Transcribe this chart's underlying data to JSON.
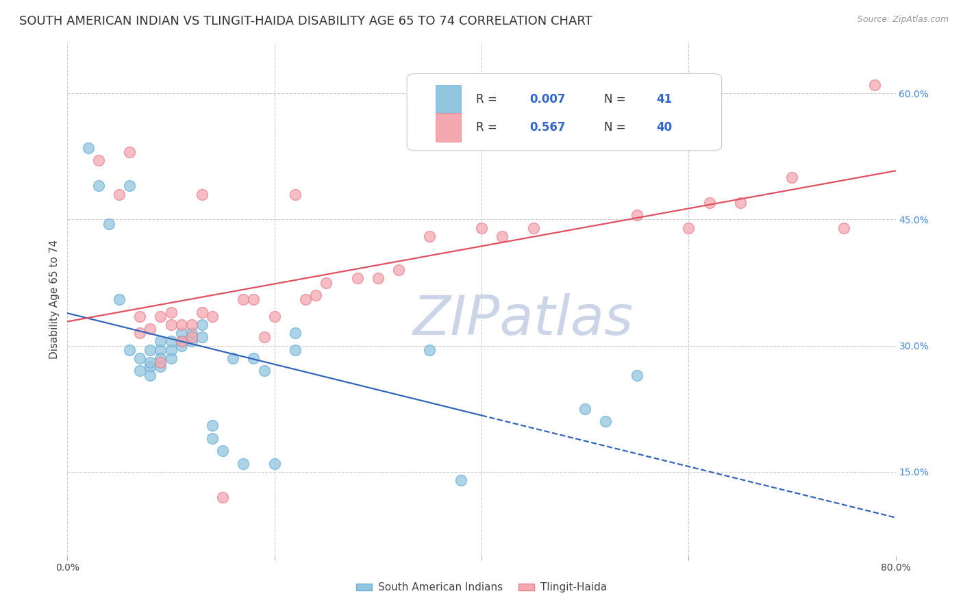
{
  "title": "SOUTH AMERICAN INDIAN VS TLINGIT-HAIDA DISABILITY AGE 65 TO 74 CORRELATION CHART",
  "source": "Source: ZipAtlas.com",
  "ylabel": "Disability Age 65 to 74",
  "x_min": 0.0,
  "x_max": 0.8,
  "y_min": 0.05,
  "y_max": 0.66,
  "x_ticks": [
    0.0,
    0.2,
    0.4,
    0.6,
    0.8
  ],
  "x_tick_labels": [
    "0.0%",
    "",
    "",
    "",
    "80.0%"
  ],
  "y_ticks": [
    0.15,
    0.3,
    0.45,
    0.6
  ],
  "y_tick_labels": [
    "15.0%",
    "30.0%",
    "45.0%",
    "60.0%"
  ],
  "legend_labels_bottom": [
    "South American Indians",
    "Tlingit-Haida"
  ],
  "blue_scatter_x": [
    0.02,
    0.04,
    0.06,
    0.07,
    0.07,
    0.08,
    0.08,
    0.09,
    0.09,
    0.09,
    0.1,
    0.1,
    0.1,
    0.11,
    0.11,
    0.11,
    0.12,
    0.12,
    0.13,
    0.13,
    0.14,
    0.14,
    0.15,
    0.16,
    0.17,
    0.18,
    0.19,
    0.2,
    0.22,
    0.22,
    0.35,
    0.38,
    0.5,
    0.52,
    0.55,
    0.03,
    0.05,
    0.06,
    0.08,
    0.08,
    0.09
  ],
  "blue_scatter_y": [
    0.535,
    0.445,
    0.295,
    0.285,
    0.27,
    0.295,
    0.275,
    0.295,
    0.305,
    0.285,
    0.285,
    0.295,
    0.305,
    0.305,
    0.315,
    0.3,
    0.305,
    0.315,
    0.325,
    0.31,
    0.205,
    0.19,
    0.175,
    0.285,
    0.16,
    0.285,
    0.27,
    0.16,
    0.315,
    0.295,
    0.295,
    0.14,
    0.225,
    0.21,
    0.265,
    0.49,
    0.355,
    0.49,
    0.28,
    0.265,
    0.275
  ],
  "pink_scatter_x": [
    0.07,
    0.07,
    0.09,
    0.1,
    0.11,
    0.11,
    0.12,
    0.12,
    0.13,
    0.14,
    0.17,
    0.18,
    0.2,
    0.23,
    0.24,
    0.25,
    0.28,
    0.3,
    0.32,
    0.35,
    0.4,
    0.42,
    0.45,
    0.55,
    0.6,
    0.62,
    0.65,
    0.7,
    0.75,
    0.78,
    0.03,
    0.05,
    0.06,
    0.08,
    0.09,
    0.1,
    0.13,
    0.15,
    0.19,
    0.22
  ],
  "pink_scatter_y": [
    0.315,
    0.335,
    0.335,
    0.325,
    0.325,
    0.305,
    0.325,
    0.31,
    0.34,
    0.335,
    0.355,
    0.355,
    0.335,
    0.355,
    0.36,
    0.375,
    0.38,
    0.38,
    0.39,
    0.43,
    0.44,
    0.43,
    0.44,
    0.455,
    0.44,
    0.47,
    0.47,
    0.5,
    0.44,
    0.61,
    0.52,
    0.48,
    0.53,
    0.32,
    0.28,
    0.34,
    0.48,
    0.12,
    0.31,
    0.48
  ],
  "bg_color": "#ffffff",
  "scatter_blue_color": "#92c5de",
  "scatter_blue_edge": "#6aaed6",
  "scatter_pink_color": "#f4a8b0",
  "scatter_pink_edge": "#e87f8c",
  "trend_blue_color": "#3366bb",
  "trend_pink_color": "#e05060",
  "grid_color": "#cccccc",
  "watermark_color": "#ccd5e8",
  "title_fontsize": 13,
  "axis_label_fontsize": 11,
  "tick_fontsize": 10
}
